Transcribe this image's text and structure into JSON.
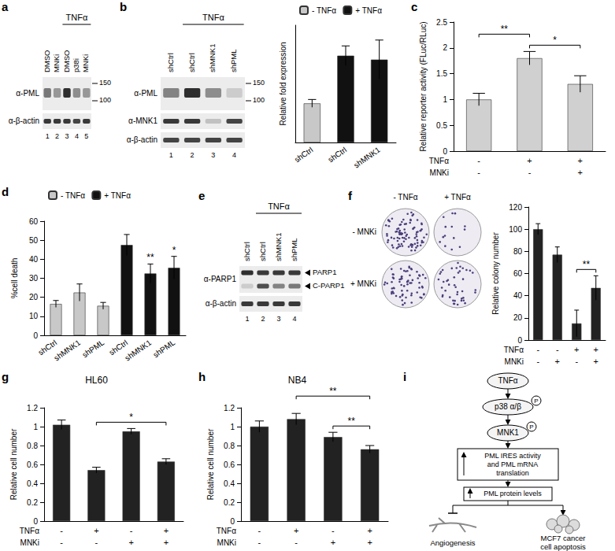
{
  "blots": [
    {
      "panel": "a",
      "lanes": [
        "DMSO",
        "MNKi",
        "DMSO",
        "p38i",
        "MNKi"
      ],
      "lane_numbers": [
        1,
        2,
        3,
        4,
        5
      ],
      "treatment": {
        "label": "TNFα",
        "lanes": [
          3,
          4,
          5
        ]
      },
      "rows": [
        {
          "label": "α-PML",
          "markers": [
            150,
            100
          ],
          "bands": [
            {
              "intensity": [
                0.55,
                0.4,
                0.9,
                0.45,
                0.4
              ]
            }
          ]
        },
        {
          "label": "α-β-actin",
          "bands": [
            {
              "intensity": [
                0.85,
                0.85,
                0.85,
                0.8,
                0.85
              ]
            }
          ]
        }
      ]
    },
    {
      "panel": "b",
      "lanes": [
        "shCtrl",
        "shCtrl",
        "shMNK1",
        "shPML"
      ],
      "lane_numbers": [
        1,
        2,
        3,
        4
      ],
      "treatment": {
        "label": "TNFα",
        "lanes": [
          2,
          3,
          4
        ]
      },
      "rows": [
        {
          "label": "α-PML",
          "markers": [
            150,
            100
          ],
          "bands": [
            {
              "intensity": [
                0.5,
                0.9,
                0.45,
                0.15
              ]
            }
          ]
        },
        {
          "label": "α-MNK1",
          "bands": [
            {
              "intensity": [
                0.85,
                0.85,
                0.2,
                0.8
              ]
            }
          ]
        },
        {
          "label": "α-β-actin",
          "bands": [
            {
              "intensity": [
                0.8,
                0.8,
                0.8,
                0.8
              ]
            }
          ]
        }
      ]
    },
    {
      "panel": "e",
      "lanes": [
        "shCtrl",
        "shCtrl",
        "shMNK1",
        "shPML"
      ],
      "lane_numbers": [
        1,
        2,
        3,
        4
      ],
      "treatment": {
        "label": "TNFα",
        "lanes": [
          2,
          3,
          4
        ]
      },
      "rows": [
        {
          "label": "α-PARP1",
          "bands": [
            {
              "label": "PARP1",
              "intensity": [
                0.9,
                0.85,
                0.85,
                0.85
              ]
            },
            {
              "label": "C-PARP1",
              "intensity": [
                0.15,
                0.75,
                0.5,
                0.55
              ]
            }
          ]
        },
        {
          "label": "α-β-actin",
          "bands": [
            {
              "intensity": [
                0.85,
                0.85,
                0.85,
                0.85
              ]
            }
          ]
        }
      ]
    }
  ],
  "chart_data": [
    {
      "panel": "b",
      "type": "bar",
      "ylabel": "Relative fold expression",
      "categories": [
        "shCtrl",
        "shCtrl",
        "shMNK1"
      ],
      "series": [
        {
          "name": "- TNFα",
          "color": "#c8c8c8",
          "values": [
            1.0,
            null,
            null
          ],
          "errors": [
            0.1,
            null,
            null
          ]
        },
        {
          "name": "+ TNFα",
          "color": "#111111",
          "values": [
            null,
            2.22,
            2.12
          ],
          "errors": [
            null,
            0.25,
            0.5
          ]
        }
      ],
      "ylim": [
        0,
        3
      ],
      "tick_labels": "x",
      "grid": false,
      "legend": "top"
    },
    {
      "panel": "c",
      "type": "bar",
      "ylabel": "Relative reporter activity (FLuc/RLuc)",
      "categories": [
        null,
        null,
        null
      ],
      "values": [
        1.0,
        1.8,
        1.3
      ],
      "errors": [
        0.12,
        0.13,
        0.16
      ],
      "color": "#d0d0d0",
      "ylim": [
        0,
        2.5
      ],
      "yticks": [
        0,
        0.5,
        1,
        1.5,
        2,
        2.5
      ],
      "grid": false,
      "tick_labels": "y",
      "conditions": [
        {
          "label": "TNFα",
          "values": [
            "-",
            "+",
            "+"
          ]
        },
        {
          "label": "MNKi",
          "values": [
            "-",
            "-",
            "+"
          ]
        }
      ],
      "significance": [
        {
          "bars": [
            2,
            3
          ],
          "label": "*"
        },
        {
          "bars": [
            1,
            2
          ],
          "label": "**"
        }
      ]
    },
    {
      "panel": "d",
      "type": "bar",
      "ylabel": "%cell death",
      "categories": [
        "shCtrl",
        "shMNK1",
        "shPML",
        "shCtrl",
        "shMNK1",
        "shPML"
      ],
      "series": [
        {
          "name": "- TNFα",
          "color": "#c8c8c8",
          "values": [
            16.5,
            22.5,
            15.5,
            null,
            null,
            null
          ],
          "errors": [
            1.8,
            4.5,
            1.8,
            null,
            null,
            null
          ]
        },
        {
          "name": "+ TNFα",
          "color": "#111111",
          "values": [
            null,
            null,
            null,
            47.5,
            32.5,
            35.5
          ],
          "errors": [
            null,
            null,
            null,
            5.5,
            5,
            6
          ]
        }
      ],
      "ylim": [
        0,
        60
      ],
      "yticks": [
        0,
        10,
        20,
        30,
        40,
        50,
        60
      ],
      "grid": false,
      "legend": "top",
      "significance": [
        {
          "bars": [
            5
          ],
          "label": "**"
        },
        {
          "bars": [
            6
          ],
          "label": "*"
        }
      ]
    },
    {
      "panel": "f",
      "type": "bar",
      "ylabel": "Relative colony number",
      "categories": [
        null,
        null,
        null,
        null
      ],
      "values": [
        100,
        77,
        15,
        47
      ],
      "errors": [
        5,
        7,
        12,
        11
      ],
      "color": "#222222",
      "ylim": [
        0,
        120
      ],
      "yticks": [
        0,
        20,
        40,
        60,
        80,
        100,
        120
      ],
      "grid": false,
      "tick_labels": "y",
      "conditions": [
        {
          "label": "TNFα",
          "values": [
            "-",
            "-",
            "+",
            "+"
          ]
        },
        {
          "label": "MNKi",
          "values": [
            "-",
            "+",
            "-",
            "+"
          ]
        }
      ],
      "significance": [
        {
          "bars": [
            3,
            4
          ],
          "label": "**"
        }
      ]
    },
    {
      "panel": "g",
      "type": "bar",
      "title": "HL60",
      "ylabel": "Relative cell number",
      "categories": [
        null,
        null,
        null,
        null
      ],
      "values": [
        1.02,
        0.54,
        0.95,
        0.63
      ],
      "errors": [
        0.05,
        0.03,
        0.03,
        0.03
      ],
      "color": "#222222",
      "ylim": [
        0,
        1.2
      ],
      "yticks": [
        0,
        0.2,
        0.4,
        0.6,
        0.8,
        1,
        1.2
      ],
      "grid": false,
      "tick_labels": "y",
      "conditions": [
        {
          "label": "TNFα",
          "values": [
            "-",
            "+",
            "-",
            "+"
          ]
        },
        {
          "label": "MNKi",
          "values": [
            "-",
            "-",
            "+",
            "+"
          ]
        }
      ],
      "significance": [
        {
          "bars": [
            2,
            4
          ],
          "label": "*"
        }
      ]
    },
    {
      "panel": "h",
      "type": "bar",
      "title": "NB4",
      "ylabel": "Relative cell number",
      "categories": [
        null,
        null,
        null,
        null
      ],
      "values": [
        1.0,
        1.08,
        0.89,
        0.76
      ],
      "errors": [
        0.06,
        0.06,
        0.05,
        0.04
      ],
      "color": "#222222",
      "ylim": [
        0,
        1.2
      ],
      "yticks": [
        0,
        0.2,
        0.4,
        0.6,
        0.8,
        1,
        1.2
      ],
      "grid": false,
      "tick_labels": "y",
      "conditions": [
        {
          "label": "TNFα",
          "values": [
            "-",
            "+",
            "-",
            "+"
          ]
        },
        {
          "label": "MNKi",
          "values": [
            "-",
            "-",
            "+",
            "+"
          ]
        }
      ],
      "significance": [
        {
          "bars": [
            3,
            4
          ],
          "label": "**"
        },
        {
          "bars": [
            2,
            4
          ],
          "label": "**"
        }
      ]
    }
  ],
  "dishes": {
    "panel": "f",
    "columns": [
      "- TNFα",
      "+ TNFα"
    ],
    "rows": [
      "- MNKi",
      "+ MNKi"
    ]
  },
  "diagram": {
    "panel": "i",
    "steps": [
      "TNFα",
      "p38 α/β",
      "MNK1"
    ],
    "phospho": "P",
    "mechanism": [
      "PML IRES activity",
      "and PML mRNA",
      "translation"
    ],
    "result": "PML protein levels",
    "outcomes": [
      [
        "Angiogenesis"
      ],
      [
        "MCF7 cancer",
        "cell apoptosis"
      ]
    ]
  }
}
